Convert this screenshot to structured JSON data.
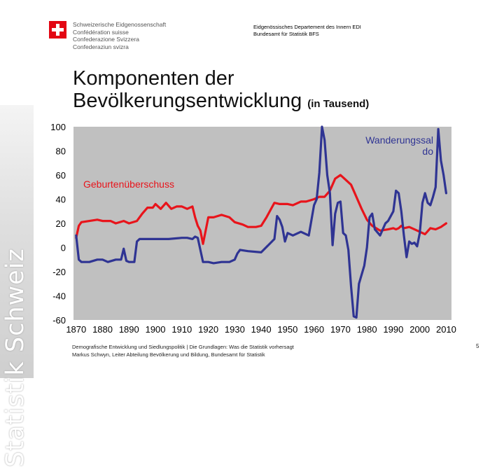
{
  "header": {
    "confederation_lines": [
      "Schweizerische Eidgenossenschaft",
      "Confédération suisse",
      "Confederazione Svizzera",
      "Confederaziun svizra"
    ],
    "department": "Eidgenössisches Departement des Innern EDI",
    "office": "Bundesamt für Statistik BFS"
  },
  "title": {
    "main_line1": "Komponenten der",
    "main_line2": "Bevölkerungsentwicklung",
    "unit": "(in Tausend)"
  },
  "sidebar": {
    "text": "Statistik Schweiz"
  },
  "footer": {
    "line1": "Demografische Entwicklung und Siedlungspolitik | Die Grundlagen: Was die Statistik vorhersagt",
    "line2": "Markus Schwyn, Leiter Abteilung Bevölkerung und Bildung, Bundesamt für Statistik",
    "page": "5"
  },
  "colors": {
    "plot_bg": "#c0c0c0",
    "series_red": "#e8141b",
    "series_blue": "#2f3493"
  },
  "chart_data": {
    "type": "line",
    "title": "Komponenten der Bevölkerungsentwicklung (in Tausend)",
    "xlabel": "",
    "ylabel": "",
    "xlim": [
      1869,
      2012
    ],
    "ylim": [
      -60,
      100
    ],
    "xticks": [
      1870,
      1880,
      1890,
      1900,
      1910,
      1920,
      1930,
      1940,
      1950,
      1960,
      1970,
      1980,
      1990,
      2000,
      2010
    ],
    "yticks": [
      100,
      80,
      60,
      40,
      20,
      0,
      -20,
      -40,
      -60
    ],
    "yticklabels": [
      "100",
      "80",
      "60",
      "40",
      "20",
      "0",
      "-20",
      "-40",
      "-60"
    ],
    "grid": false,
    "series": [
      {
        "name": "Geburtenüberschuss",
        "label_lines": [
          "Geburtenüberschuss"
        ],
        "x": [
          1870,
          1871,
          1872,
          1875,
          1878,
          1880,
          1883,
          1885,
          1888,
          1890,
          1893,
          1895,
          1897,
          1899,
          1900,
          1902,
          1904,
          1906,
          1908,
          1910,
          1912,
          1914,
          1915,
          1916,
          1917,
          1918,
          1919,
          1920,
          1922,
          1925,
          1928,
          1930,
          1933,
          1935,
          1938,
          1940,
          1942,
          1944,
          1945,
          1947,
          1950,
          1952,
          1955,
          1957,
          1960,
          1962,
          1964,
          1966,
          1968,
          1970,
          1972,
          1974,
          1976,
          1978,
          1980,
          1982,
          1985,
          1988,
          1990,
          1991,
          1992,
          1993,
          1994,
          1996,
          1998,
          2000,
          2002,
          2004,
          2006,
          2008,
          2010
        ],
        "values": [
          8,
          18,
          21,
          22,
          23,
          22,
          22,
          20,
          22,
          20,
          22,
          28,
          33,
          33,
          36,
          32,
          37,
          32,
          34,
          34,
          32,
          34,
          25,
          18,
          14,
          3,
          14,
          25,
          25,
          27,
          25,
          21,
          19,
          17,
          17,
          18,
          25,
          33,
          37,
          36,
          36,
          35,
          38,
          38,
          40,
          42,
          42,
          47,
          57,
          60,
          56,
          52,
          42,
          32,
          23,
          18,
          14,
          15,
          16,
          15,
          16,
          18,
          16,
          17,
          15,
          13,
          11,
          16,
          15,
          17,
          20
        ]
      },
      {
        "name": "Wanderungssaldo",
        "label_lines": [
          "Wanderungssal",
          "do"
        ],
        "x": [
          1870,
          1871,
          1872,
          1875,
          1878,
          1880,
          1882,
          1885,
          1887,
          1888,
          1889,
          1890,
          1892,
          1893,
          1894,
          1898,
          1900,
          1905,
          1910,
          1912,
          1914,
          1915,
          1916,
          1918,
          1920,
          1922,
          1925,
          1928,
          1930,
          1931,
          1932,
          1935,
          1940,
          1945,
          1946,
          1947,
          1948,
          1949,
          1950,
          1952,
          1955,
          1958,
          1960,
          1961,
          1962,
          1963,
          1964,
          1965,
          1966,
          1967,
          1968,
          1969,
          1970,
          1971,
          1972,
          1973,
          1974,
          1975,
          1976,
          1977,
          1979,
          1980,
          1981,
          1982,
          1983,
          1985,
          1987,
          1988,
          1990,
          1991,
          1992,
          1993,
          1994,
          1995,
          1996,
          1997,
          1998,
          1999,
          2000,
          2001,
          2002,
          2003,
          2004,
          2005,
          2006,
          2007,
          2008,
          2009,
          2010
        ],
        "values": [
          10,
          -10,
          -12,
          -12,
          -10,
          -10,
          -12,
          -10,
          -10,
          -1,
          -11,
          -12,
          -12,
          5,
          7,
          7,
          7,
          7,
          8,
          8,
          7,
          9,
          8,
          -12,
          -12,
          -13,
          -12,
          -12,
          -10,
          -5,
          -2,
          -3,
          -4,
          7,
          26,
          23,
          17,
          5,
          12,
          10,
          13,
          10,
          35,
          40,
          62,
          100,
          89,
          60,
          45,
          2,
          28,
          37,
          38,
          12,
          10,
          -2,
          -32,
          -57,
          -58,
          -30,
          -15,
          0,
          25,
          28,
          15,
          10,
          20,
          22,
          30,
          47,
          45,
          30,
          10,
          -8,
          5,
          3,
          4,
          1,
          12,
          37,
          45,
          37,
          35,
          42,
          50,
          98,
          72,
          60,
          45
        ]
      }
    ]
  }
}
